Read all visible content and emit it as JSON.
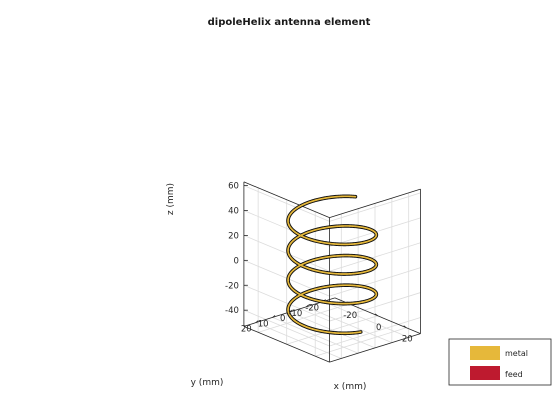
{
  "chart_data": {
    "type": "line3d",
    "title": "dipoleHelix antenna element",
    "xlabel": "x (mm)",
    "ylabel": "y (mm)",
    "zlabel": "z (mm)",
    "xlim": [
      -30,
      30
    ],
    "ylim": [
      -27,
      27
    ],
    "zlim": [
      -53,
      63
    ],
    "x_ticks": [
      -20,
      0,
      20
    ],
    "y_ticks": [
      20,
      10,
      0,
      -10,
      -20
    ],
    "z_ticks": [
      60,
      40,
      20,
      0,
      -20,
      -40
    ],
    "grid": true,
    "legend_position": "bottom-right",
    "helix": {
      "radius_mm": 20,
      "turns": 3.7,
      "z_start_mm": -45,
      "z_end_mm": 43
    },
    "legend": [
      {
        "label": "metal",
        "color": "#e6b83a"
      },
      {
        "label": "feed",
        "color": "#be1a2f"
      }
    ],
    "colors": {
      "metal": "#e6b83a",
      "edge": "#111111"
    }
  }
}
